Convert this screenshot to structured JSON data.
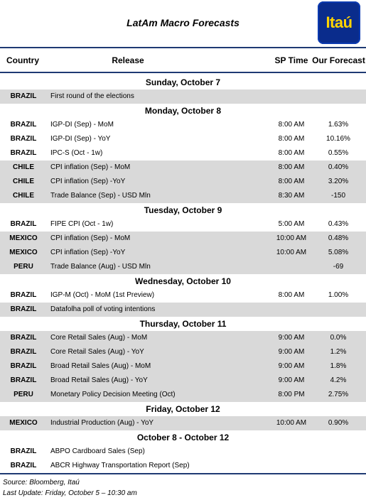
{
  "title": "LatAm Macro Forecasts",
  "logo": {
    "text": "Itaú",
    "bg": "#0a2c8c",
    "fg": "#ffd400"
  },
  "colors": {
    "rule": "#1f3a73",
    "shade": "#d9d9d9"
  },
  "headers": {
    "country": "Country",
    "release": "Release",
    "sp_time": "SP Time",
    "forecast": "Our Forecast"
  },
  "sections": [
    {
      "day": "Sunday,  October 7",
      "rows": [
        {
          "country": "BRAZIL",
          "release": "First round of the elections",
          "time": "",
          "forecast": ""
        }
      ]
    },
    {
      "day": "Monday,  October 8",
      "rows": [
        {
          "country": "BRAZIL",
          "release": "IGP-DI (Sep) - MoM",
          "time": "8:00 AM",
          "forecast": "1.63%"
        },
        {
          "country": "BRAZIL",
          "release": "IGP-DI (Sep) - YoY",
          "time": "8:00 AM",
          "forecast": "10.16%"
        },
        {
          "country": "BRAZIL",
          "release": "IPC-S (Oct - 1w)",
          "time": "8:00 AM",
          "forecast": "0.55%"
        },
        {
          "country": "CHILE",
          "release": "CPI inflation (Sep) - MoM",
          "time": "8:00 AM",
          "forecast": "0.40%"
        },
        {
          "country": "CHILE",
          "release": "CPI inflation (Sep) -YoY",
          "time": "8:00 AM",
          "forecast": "3.20%"
        },
        {
          "country": "CHILE",
          "release": "Trade Balance (Sep) - USD Mln",
          "time": "8:30 AM",
          "forecast": "-150"
        }
      ]
    },
    {
      "day": "Tuesday,  October 9",
      "rows": [
        {
          "country": "BRAZIL",
          "release": "FIPE CPI (Oct - 1w)",
          "time": "5:00 AM",
          "forecast": "0.43%"
        },
        {
          "country": "MEXICO",
          "release": "CPI inflation (Sep) - MoM",
          "time": "10:00 AM",
          "forecast": "0.48%"
        },
        {
          "country": "MEXICO",
          "release": "CPI inflation (Sep) -YoY",
          "time": "10:00 AM",
          "forecast": "5.08%"
        },
        {
          "country": "PERU",
          "release": "Trade Balance (Aug) - USD Mln",
          "time": "",
          "forecast": "-69"
        }
      ]
    },
    {
      "day": "Wednesday,  October 10",
      "rows": [
        {
          "country": "BRAZIL",
          "release": "IGP-M (Oct) - MoM (1st Preview)",
          "time": "8:00 AM",
          "forecast": "1.00%"
        },
        {
          "country": "BRAZIL",
          "release": "Datafolha poll of voting intentions",
          "time": "",
          "forecast": ""
        }
      ]
    },
    {
      "day": "Thursday,  October 11",
      "rows": [
        {
          "country": "BRAZIL",
          "release": "Core Retail Sales (Aug) - MoM",
          "time": "9:00 AM",
          "forecast": "0.0%"
        },
        {
          "country": "BRAZIL",
          "release": "Core Retail Sales (Aug) - YoY",
          "time": "9:00 AM",
          "forecast": "1.2%"
        },
        {
          "country": "BRAZIL",
          "release": "Broad Retail Sales (Aug) - MoM",
          "time": "9:00 AM",
          "forecast": "1.8%"
        },
        {
          "country": "BRAZIL",
          "release": "Broad Retail Sales (Aug) - YoY",
          "time": "9:00 AM",
          "forecast": "4.2%"
        },
        {
          "country": "PERU",
          "release": "Monetary Policy Decision Meeting (Oct)",
          "time": "8:00 PM",
          "forecast": "2.75%"
        }
      ]
    },
    {
      "day": "Friday,  October 12",
      "rows": [
        {
          "country": "MEXICO",
          "release": "Industrial Production (Aug) - YoY",
          "time": "10:00 AM",
          "forecast": "0.90%"
        }
      ]
    },
    {
      "day": "October 8 - October 12",
      "rows": [
        {
          "country": "BRAZIL",
          "release": "ABPO Cardboard Sales (Sep)",
          "time": "",
          "forecast": ""
        },
        {
          "country": "BRAZIL",
          "release": "ABCR Highway Transportation Report (Sep)",
          "time": "",
          "forecast": ""
        }
      ]
    }
  ],
  "footer": {
    "source": "Source: Bloomberg, Itaú",
    "last_update": "Last Update: Friday, October 5 – 10:30 am"
  }
}
